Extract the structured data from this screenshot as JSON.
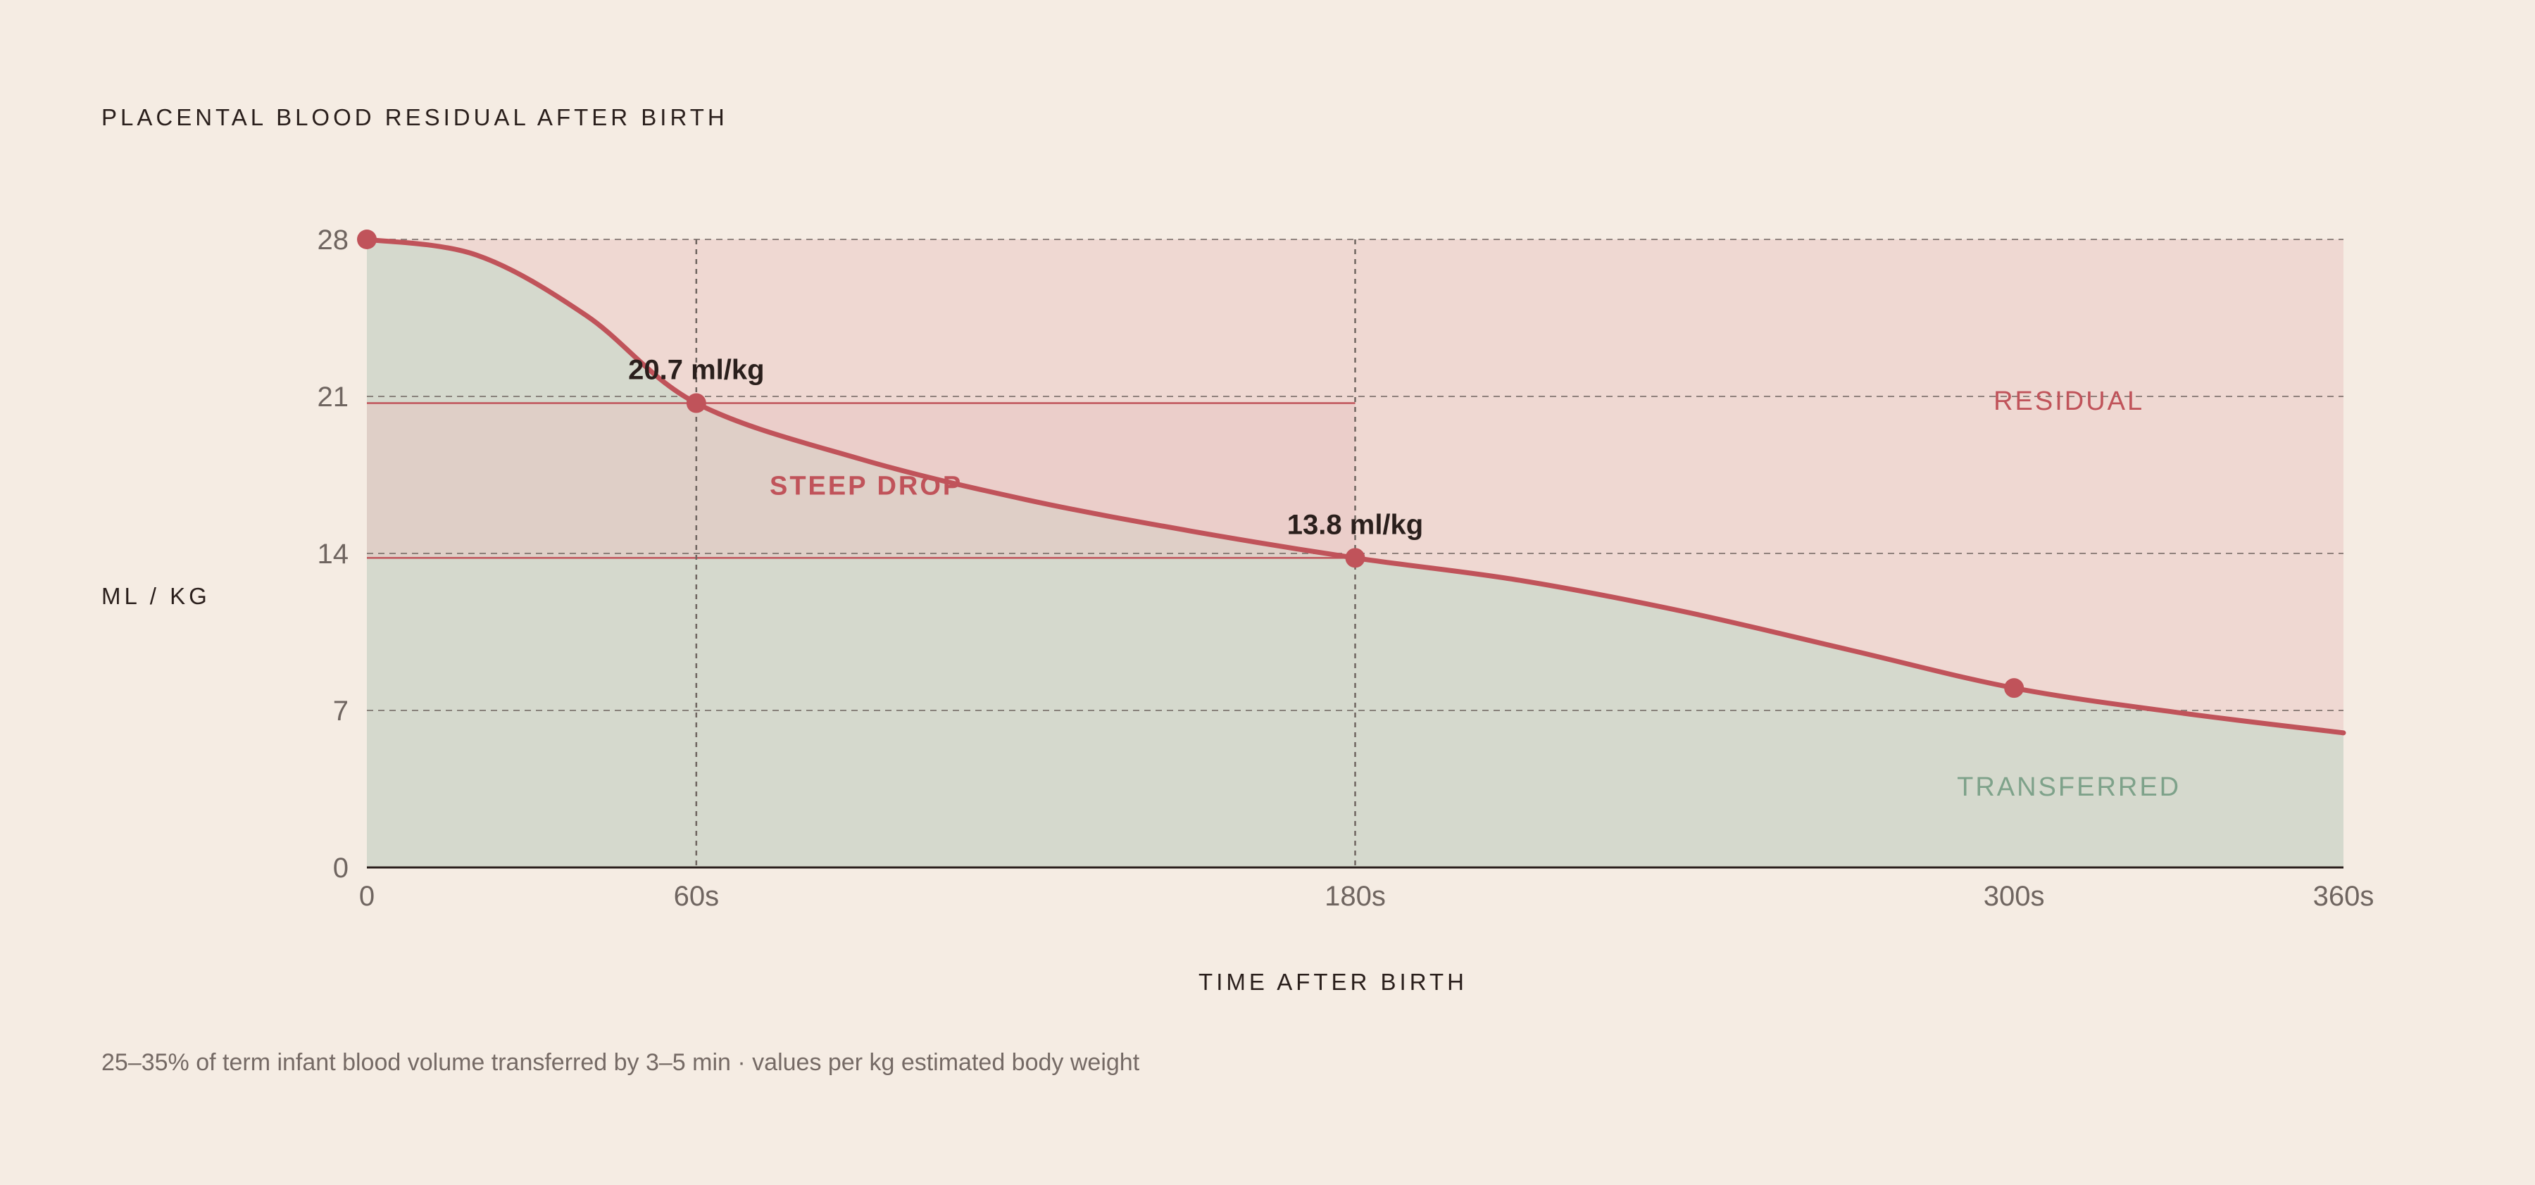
{
  "title": "PLACENTAL BLOOD RESIDUAL AFTER BIRTH",
  "footnote": "25–35% of term infant blood volume transferred by 3–5 min · values per kg estimated body weight",
  "colors": {
    "background": "#f5ece3",
    "curve": "#c0535a",
    "transferred_fill": "#d5d9cd",
    "residual_fill": "#efd8d2",
    "steep_drop_fill": "#e8c7c2",
    "transferred_label": "#7ea28a",
    "residual_label": "#c0535a",
    "grid": "#6f6560"
  },
  "chart_data": {
    "type": "area",
    "xlabel": "TIME AFTER BIRTH",
    "ylabel": "ML / KG",
    "xlim": [
      0,
      360
    ],
    "ylim": [
      0,
      28
    ],
    "x_ticks": [
      {
        "value": 0,
        "label": "0"
      },
      {
        "value": 60,
        "label": "60s"
      },
      {
        "value": 180,
        "label": "180s"
      },
      {
        "value": 300,
        "label": "300s"
      },
      {
        "value": 360,
        "label": "360s"
      }
    ],
    "y_ticks": [
      {
        "value": 0,
        "label": "0"
      },
      {
        "value": 7,
        "label": "7"
      },
      {
        "value": 14,
        "label": "14"
      },
      {
        "value": 21,
        "label": "21"
      },
      {
        "value": 28,
        "label": "28"
      }
    ],
    "grid": true,
    "vertical_guides": [
      60,
      180
    ],
    "curve": [
      {
        "x": 0,
        "y": 28
      },
      {
        "x": 20,
        "y": 27.3
      },
      {
        "x": 40,
        "y": 24.6
      },
      {
        "x": 60,
        "y": 20.7
      },
      {
        "x": 90,
        "y": 18.2
      },
      {
        "x": 120,
        "y": 16.4
      },
      {
        "x": 150,
        "y": 15.0
      },
      {
        "x": 180,
        "y": 13.8
      },
      {
        "x": 210,
        "y": 12.8
      },
      {
        "x": 240,
        "y": 11.4
      },
      {
        "x": 270,
        "y": 9.7
      },
      {
        "x": 300,
        "y": 8.0
      },
      {
        "x": 330,
        "y": 6.9
      },
      {
        "x": 360,
        "y": 6.0
      }
    ],
    "markers": [
      {
        "x": 0,
        "y": 28
      },
      {
        "x": 60,
        "y": 20.7
      },
      {
        "x": 180,
        "y": 13.8
      },
      {
        "x": 300,
        "y": 8.0
      }
    ],
    "callouts": [
      {
        "x": 60,
        "y": 20.7,
        "label": "20.7 ml/kg"
      },
      {
        "x": 180,
        "y": 13.8,
        "label": "13.8 ml/kg"
      }
    ],
    "steep_drop_band": {
      "x0": 0,
      "x1": 180,
      "y0": 13.8,
      "y1": 20.7,
      "label": "STEEP DROP"
    },
    "regions": [
      {
        "name": "RESIDUAL",
        "x": 310,
        "y": 20.4
      },
      {
        "name": "TRANSFERRED",
        "x": 310,
        "y": 3.2
      }
    ]
  }
}
